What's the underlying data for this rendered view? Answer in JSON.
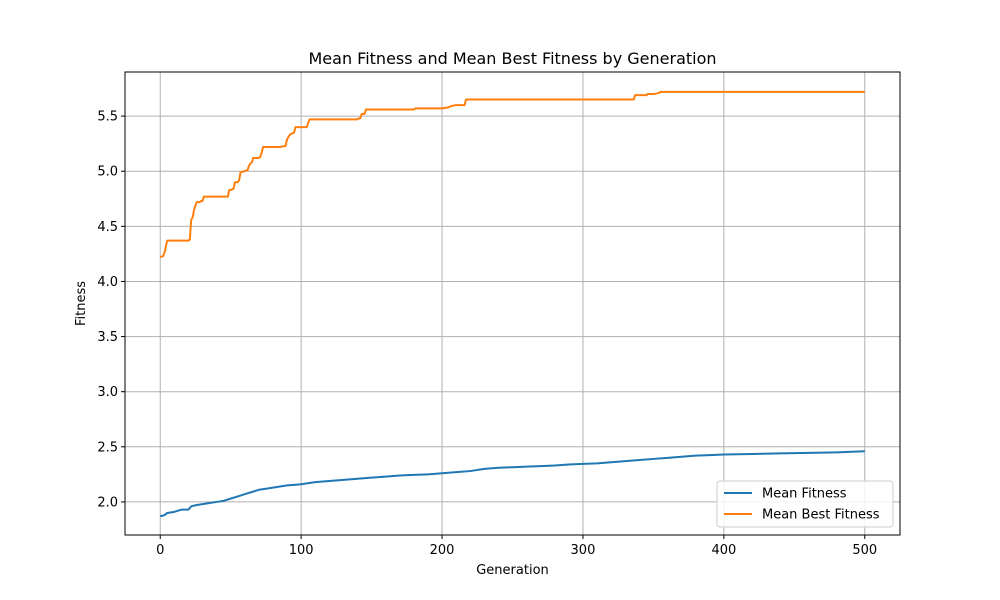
{
  "chart_data": {
    "type": "line",
    "title": "Mean Fitness and Mean Best Fitness by Generation",
    "xlabel": "Generation",
    "ylabel": "Fitness",
    "xlim": [
      -25,
      525
    ],
    "ylim": [
      1.7,
      5.9
    ],
    "xticks": [
      0,
      100,
      200,
      300,
      400,
      500
    ],
    "xtick_labels": [
      "0",
      "100",
      "200",
      "300",
      "400",
      "500"
    ],
    "yticks": [
      2.0,
      2.5,
      3.0,
      3.5,
      4.0,
      4.5,
      5.0,
      5.5
    ],
    "ytick_labels": [
      "2.0",
      "2.5",
      "3.0",
      "3.5",
      "4.0",
      "4.5",
      "5.0",
      "5.5"
    ],
    "grid": true,
    "legend_position": "lower-right",
    "series": [
      {
        "name": "Mean Fitness",
        "color": "#1f77b4",
        "x": [
          0,
          3,
          5,
          10,
          15,
          20,
          22,
          25,
          30,
          35,
          40,
          45,
          50,
          55,
          60,
          65,
          70,
          75,
          80,
          85,
          90,
          95,
          100,
          110,
          120,
          130,
          140,
          150,
          160,
          170,
          180,
          190,
          200,
          210,
          220,
          230,
          240,
          250,
          260,
          270,
          280,
          290,
          300,
          310,
          320,
          330,
          340,
          350,
          360,
          370,
          380,
          390,
          400,
          420,
          440,
          460,
          480,
          500
        ],
        "y": [
          1.87,
          1.88,
          1.9,
          1.91,
          1.93,
          1.93,
          1.96,
          1.97,
          1.98,
          1.99,
          2.0,
          2.01,
          2.03,
          2.05,
          2.07,
          2.09,
          2.11,
          2.12,
          2.13,
          2.14,
          2.15,
          2.155,
          2.16,
          2.18,
          2.19,
          2.2,
          2.21,
          2.22,
          2.23,
          2.24,
          2.245,
          2.25,
          2.26,
          2.27,
          2.28,
          2.3,
          2.31,
          2.315,
          2.32,
          2.325,
          2.33,
          2.34,
          2.345,
          2.35,
          2.36,
          2.37,
          2.38,
          2.39,
          2.4,
          2.41,
          2.42,
          2.425,
          2.43,
          2.435,
          2.44,
          2.445,
          2.45,
          2.46
        ]
      },
      {
        "name": "Mean Best Fitness",
        "color": "#ff7f0e",
        "x": [
          0,
          2,
          3,
          4,
          5,
          6,
          10,
          15,
          20,
          21,
          22,
          23,
          24,
          25,
          26,
          28,
          29,
          30,
          31,
          35,
          40,
          45,
          48,
          49,
          50,
          52,
          53,
          55,
          56,
          57,
          60,
          62,
          63,
          64,
          65,
          66,
          70,
          71,
          72,
          73,
          80,
          85,
          89,
          90,
          92,
          93,
          95,
          96,
          100,
          104,
          105,
          106,
          110,
          120,
          130,
          140,
          141,
          142,
          143,
          145,
          146,
          150,
          160,
          170,
          180,
          181,
          190,
          200,
          205,
          206,
          210,
          216,
          217,
          218,
          220,
          250,
          300,
          330,
          336,
          337,
          340,
          345,
          346,
          350,
          354,
          355,
          360,
          400,
          450,
          500
        ],
        "y": [
          4.22,
          4.23,
          4.26,
          4.32,
          4.37,
          4.37,
          4.37,
          4.37,
          4.37,
          4.38,
          4.56,
          4.58,
          4.65,
          4.69,
          4.72,
          4.72,
          4.73,
          4.73,
          4.77,
          4.77,
          4.77,
          4.77,
          4.77,
          4.83,
          4.83,
          4.84,
          4.9,
          4.9,
          4.92,
          4.99,
          5.0,
          5.01,
          5.05,
          5.07,
          5.08,
          5.12,
          5.12,
          5.13,
          5.17,
          5.22,
          5.22,
          5.22,
          5.23,
          5.29,
          5.33,
          5.34,
          5.35,
          5.4,
          5.4,
          5.4,
          5.44,
          5.47,
          5.47,
          5.47,
          5.47,
          5.47,
          5.48,
          5.48,
          5.52,
          5.52,
          5.56,
          5.56,
          5.56,
          5.56,
          5.56,
          5.57,
          5.57,
          5.57,
          5.58,
          5.59,
          5.6,
          5.6,
          5.65,
          5.65,
          5.65,
          5.65,
          5.65,
          5.65,
          5.65,
          5.69,
          5.69,
          5.69,
          5.7,
          5.7,
          5.71,
          5.72,
          5.72,
          5.72,
          5.72,
          5.72
        ]
      }
    ]
  }
}
